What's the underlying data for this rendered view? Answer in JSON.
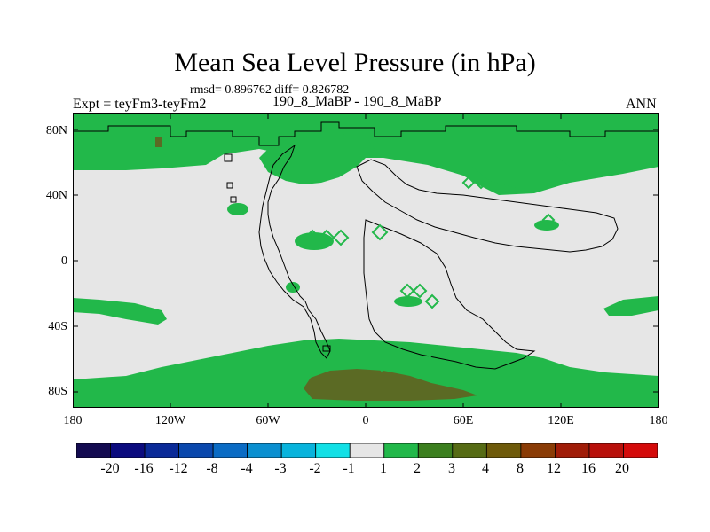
{
  "title": "Mean Sea Level Pressure (in hPa)",
  "stats": "rmsd= 0.896762  diff= 0.826782",
  "experiment": "Expt = teyFm3-teyFm2",
  "period": "190_8_MaBP - 190_8_MaBP",
  "season": "ANN",
  "lat_labels": [
    "80N",
    "40N",
    "0",
    "40S",
    "80S"
  ],
  "lon_labels": [
    "180",
    "120W",
    "60W",
    "0",
    "60E",
    "120E",
    "180"
  ],
  "colorbar": {
    "labels": [
      "-20",
      "-16",
      "-12",
      "-8",
      "-4",
      "-3",
      "-2",
      "-1",
      "1",
      "2",
      "3",
      "4",
      "8",
      "12",
      "16",
      "20"
    ],
    "colors": [
      "#130a50",
      "#0b0b7e",
      "#0a2a98",
      "#0a48ad",
      "#0a6bc4",
      "#0a8fd0",
      "#08b3dc",
      "#12e0e6",
      "#e6e6e6",
      "#22b84a",
      "#3c7f1f",
      "#566b14",
      "#6e5a0a",
      "#8a3c06",
      "#a01c08",
      "#b8100a",
      "#d40a0a"
    ]
  },
  "colors": {
    "neutral": "#e6e6e6",
    "green": "#22b84a",
    "brown": "#5b6a24",
    "outline": "#000000"
  }
}
